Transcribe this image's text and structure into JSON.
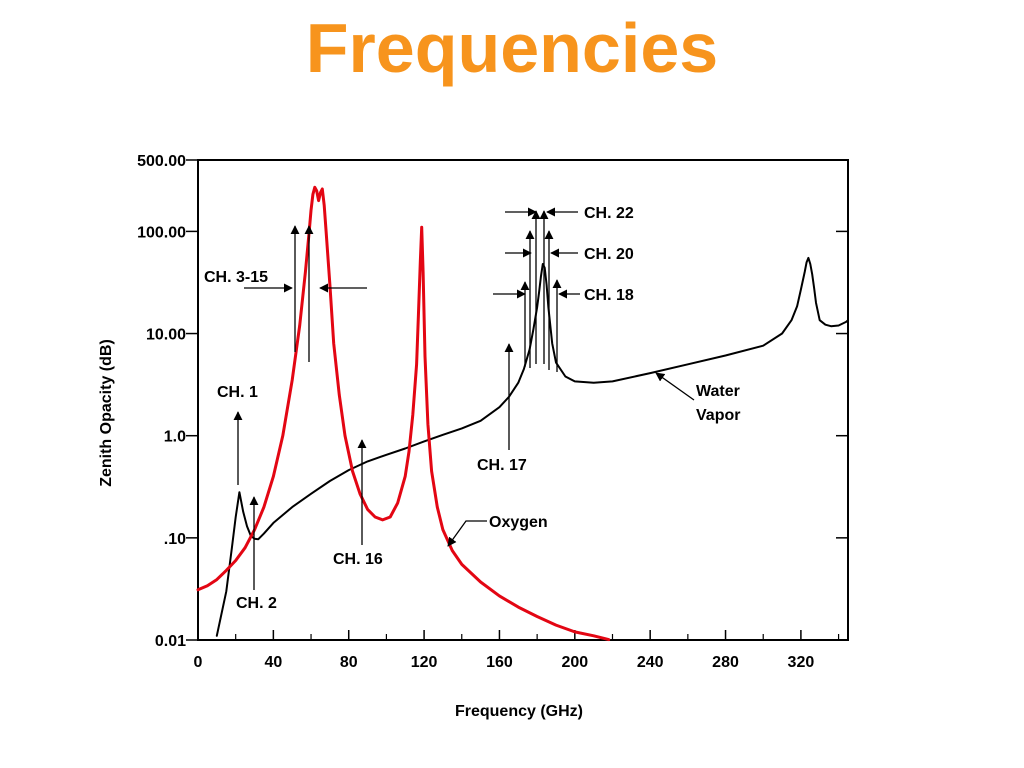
{
  "slide": {
    "title": "Frequencies",
    "title_color": "#F7941D"
  },
  "chart_data": {
    "type": "line",
    "xlabel": "Frequency (GHz)",
    "ylabel": "Zenith Opacity (dB)",
    "xlim": [
      0,
      345
    ],
    "ylim": [
      0.01,
      500
    ],
    "y_scale": "log",
    "x_ticks": [
      0,
      40,
      80,
      120,
      160,
      200,
      240,
      280,
      320
    ],
    "x_tick_labels": [
      "0",
      "40",
      "80",
      "120",
      "160",
      "200",
      "240",
      "280",
      "320"
    ],
    "y_ticks": [
      0.01,
      0.1,
      1,
      10,
      100,
      500
    ],
    "y_tick_labels": [
      "0.01",
      ".10",
      "1.0",
      "10.00",
      "100.00",
      "500.00"
    ],
    "grid": false,
    "series": [
      {
        "name": "Water Vapor",
        "color": "#000000",
        "x": [
          10,
          15,
          18,
          20,
          22,
          24,
          26,
          28,
          30,
          32,
          35,
          40,
          50,
          60,
          70,
          80,
          90,
          100,
          110,
          120,
          130,
          140,
          150,
          160,
          165,
          170,
          173,
          176,
          178,
          180,
          181,
          182,
          183,
          184,
          185,
          186,
          188,
          190,
          195,
          200,
          210,
          220,
          240,
          260,
          280,
          300,
          310,
          315,
          318,
          320,
          322,
          323,
          324,
          325,
          326,
          327,
          328,
          330,
          333,
          336,
          340,
          344,
          345
        ],
        "y": [
          0.011,
          0.03,
          0.08,
          0.16,
          0.28,
          0.18,
          0.13,
          0.105,
          0.098,
          0.097,
          0.11,
          0.14,
          0.2,
          0.27,
          0.36,
          0.46,
          0.56,
          0.65,
          0.75,
          0.88,
          1.02,
          1.18,
          1.4,
          1.9,
          2.4,
          3.3,
          4.5,
          7.0,
          11,
          18,
          25,
          36,
          48,
          44,
          30,
          18,
          8,
          5.2,
          3.8,
          3.4,
          3.3,
          3.4,
          4.1,
          5.0,
          6.1,
          7.6,
          10.0,
          13.5,
          18.5,
          27,
          40,
          50,
          55,
          48,
          38,
          28,
          20,
          13.5,
          12.2,
          11.8,
          12.0,
          13.0,
          13.5
        ]
      },
      {
        "name": "Oxygen",
        "color": "#E30613",
        "x": [
          0,
          5,
          10,
          15,
          20,
          25,
          30,
          35,
          40,
          45,
          50,
          54,
          57,
          59,
          60,
          61,
          62,
          63,
          64,
          65,
          66,
          67,
          68,
          70,
          72,
          75,
          78,
          82,
          86,
          90,
          94,
          98,
          102,
          106,
          110,
          112,
          114,
          116,
          117,
          118,
          118.75,
          119.5,
          120.5,
          122,
          124,
          127,
          130,
          135,
          140,
          150,
          160,
          170,
          180,
          190,
          200,
          210,
          218
        ],
        "y": [
          0.031,
          0.034,
          0.039,
          0.048,
          0.06,
          0.08,
          0.12,
          0.2,
          0.4,
          1.0,
          3.5,
          12,
          40,
          100,
          160,
          230,
          270,
          250,
          200,
          240,
          260,
          180,
          100,
          30,
          8,
          2.5,
          1.0,
          0.45,
          0.27,
          0.19,
          0.16,
          0.15,
          0.16,
          0.22,
          0.4,
          0.7,
          1.6,
          5.0,
          15,
          50,
          110,
          40,
          6.0,
          1.3,
          0.45,
          0.2,
          0.12,
          0.075,
          0.055,
          0.037,
          0.027,
          0.021,
          0.017,
          0.014,
          0.012,
          0.011,
          0.0101
        ]
      }
    ],
    "annotations": [
      {
        "text": "CH. 1",
        "freq": 23.8
      },
      {
        "text": "CH. 2",
        "freq": 31.4
      },
      {
        "text": "CH. 3-15",
        "freq": 57
      },
      {
        "text": "CH. 16",
        "freq": 89
      },
      {
        "text": "CH. 17",
        "freq": 165.5
      },
      {
        "text": "CH. 18",
        "freq": 190.3
      },
      {
        "text": "CH. 20",
        "freq": 183.3
      },
      {
        "text": "CH. 22",
        "freq": 183.3
      },
      {
        "text": "Water\nVapor"
      },
      {
        "text": "Oxygen"
      }
    ]
  }
}
